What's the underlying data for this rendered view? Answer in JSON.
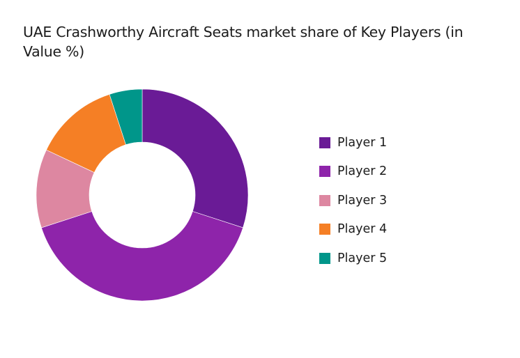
{
  "chart_data": {
    "type": "pie",
    "variant": "donut",
    "title": "UAE Crashworthy Aircraft Seats market share of Key Players (in Value %)",
    "categories": [
      "Player 1",
      "Player 2",
      "Player 3",
      "Player 4",
      "Player 5"
    ],
    "values": [
      30,
      40,
      12,
      13,
      5
    ],
    "unit": "%",
    "colors": [
      "#6a1b96",
      "#8e24aa",
      "#dd87a1",
      "#f57f25",
      "#00968a"
    ],
    "legend_position": "right",
    "start_angle_deg": 0,
    "direction": "clockwise"
  },
  "title": "UAE Crashworthy Aircraft Seats market share of Key Players (in Value %)",
  "legend": [
    {
      "label": "Player 1",
      "color": "#6a1b96"
    },
    {
      "label": "Player 2",
      "color": "#8e24aa"
    },
    {
      "label": "Player 3",
      "color": "#dd87a1"
    },
    {
      "label": "Player 4",
      "color": "#f57f25"
    },
    {
      "label": "Player 5",
      "color": "#00968a"
    }
  ]
}
